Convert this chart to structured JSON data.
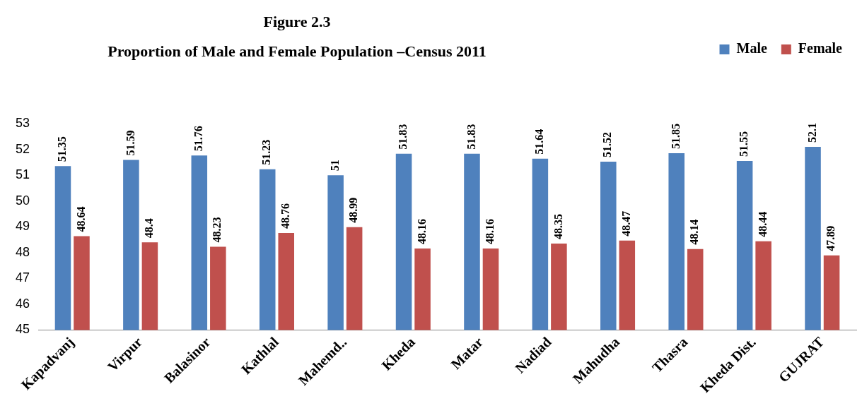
{
  "chart_data": {
    "type": "bar",
    "title": "Figure 2.3",
    "subtitle": "Proportion of Male and Female Population –Census 2011",
    "categories": [
      "Kapadvanj",
      "Virpur",
      "Balasinor",
      "Kathlal",
      "Mahemd..",
      "Kheda",
      "Matar",
      "Nadiad",
      "Mahudha",
      "Thasra",
      "Kheda Dist.",
      "GUJRAT"
    ],
    "series": [
      {
        "name": "Male",
        "color": "#4f81bd",
        "values": [
          51.35,
          51.59,
          51.76,
          51.23,
          51,
          51.83,
          51.83,
          51.64,
          51.52,
          51.85,
          51.55,
          52.1
        ]
      },
      {
        "name": "Female",
        "color": "#c0504d",
        "values": [
          48.64,
          48.4,
          48.23,
          48.76,
          48.99,
          48.16,
          48.16,
          48.35,
          48.47,
          48.14,
          48.44,
          47.89
        ]
      }
    ],
    "ylim": [
      45,
      53
    ],
    "yticks": [
      45,
      46,
      47,
      48,
      49,
      50,
      51,
      52,
      53
    ],
    "data_labels": true,
    "grid": false,
    "legend": "top right"
  }
}
